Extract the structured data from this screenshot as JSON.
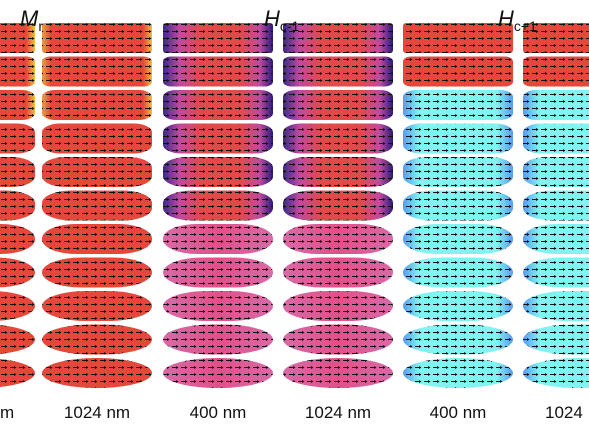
{
  "headers": [
    {
      "symbol": "M",
      "subscript": "r"
    },
    {
      "symbol": "H",
      "subscript": "c-1"
    },
    {
      "symbol": "H",
      "subscript": "c+1"
    }
  ],
  "column_labels": [
    "m",
    "1024 nm",
    "400 nm",
    "1024 nm",
    "400 nm",
    "1024"
  ]
}
